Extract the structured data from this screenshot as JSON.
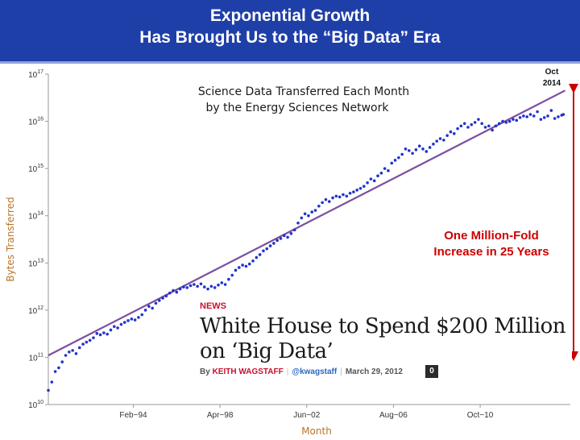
{
  "banner": {
    "title_line1": "Exponential Growth",
    "title_line2": "Has Brought Us to the “Big Data” Era",
    "background_color": "#1f3fa8"
  },
  "chart_data": {
    "type": "scatter",
    "title_line1": "Science Data Transferred Each Month",
    "title_line2": "by the Energy Sciences Network",
    "xlabel": "Month",
    "ylabel": "Bytes Transferred",
    "y_scale": "log",
    "ylim": [
      10000000000.0,
      1e+17
    ],
    "y_ticks": [
      {
        "base": "10",
        "exp": "10",
        "value": 10000000000.0
      },
      {
        "base": "10",
        "exp": "11",
        "value": 100000000000.0
      },
      {
        "base": "10",
        "exp": "12",
        "value": 1000000000000.0
      },
      {
        "base": "10",
        "exp": "13",
        "value": 10000000000000.0
      },
      {
        "base": "10",
        "exp": "14",
        "value": 100000000000000.0
      },
      {
        "base": "10",
        "exp": "15",
        "value": 1000000000000000.0
      },
      {
        "base": "10",
        "exp": "16",
        "value": 1e+16
      },
      {
        "base": "10",
        "exp": "17",
        "value": 1e+17
      }
    ],
    "x_ticks": [
      "Feb−94",
      "Apr−98",
      "Jun−02",
      "Aug−06",
      "Oct−10"
    ],
    "xlim": [
      "1990-01",
      "2015-02"
    ],
    "grid": false,
    "marker_color": "#2233cc",
    "trend_color": "#7b4fa0",
    "points": [
      [
        "1990-01",
        20000000000.0
      ],
      [
        "1990-03",
        30000000000.0
      ],
      [
        "1990-05",
        50000000000.0
      ],
      [
        "1990-07",
        60000000000.0
      ],
      [
        "1990-09",
        80000000000.0
      ],
      [
        "1990-11",
        110000000000.0
      ],
      [
        "1991-01",
        130000000000.0
      ],
      [
        "1991-03",
        140000000000.0
      ],
      [
        "1991-05",
        120000000000.0
      ],
      [
        "1991-07",
        160000000000.0
      ],
      [
        "1991-09",
        190000000000.0
      ],
      [
        "1991-11",
        210000000000.0
      ],
      [
        "1992-01",
        230000000000.0
      ],
      [
        "1992-03",
        260000000000.0
      ],
      [
        "1992-05",
        320000000000.0
      ],
      [
        "1992-07",
        300000000000.0
      ],
      [
        "1992-09",
        330000000000.0
      ],
      [
        "1992-11",
        310000000000.0
      ],
      [
        "1993-01",
        380000000000.0
      ],
      [
        "1993-03",
        450000000000.0
      ],
      [
        "1993-05",
        420000000000.0
      ],
      [
        "1993-07",
        500000000000.0
      ],
      [
        "1993-09",
        550000000000.0
      ],
      [
        "1993-11",
        600000000000.0
      ],
      [
        "1994-01",
        650000000000.0
      ],
      [
        "1994-03",
        620000000000.0
      ],
      [
        "1994-05",
        700000000000.0
      ],
      [
        "1994-07",
        800000000000.0
      ],
      [
        "1994-09",
        1000000000000.0
      ],
      [
        "1994-11",
        1200000000000.0
      ],
      [
        "1995-01",
        1100000000000.0
      ],
      [
        "1995-03",
        1400000000000.0
      ],
      [
        "1995-05",
        1600000000000.0
      ],
      [
        "1995-07",
        1800000000000.0
      ],
      [
        "1995-09",
        2000000000000.0
      ],
      [
        "1995-11",
        2300000000000.0
      ],
      [
        "1996-01",
        2600000000000.0
      ],
      [
        "1996-03",
        2400000000000.0
      ],
      [
        "1996-05",
        2800000000000.0
      ],
      [
        "1996-07",
        3100000000000.0
      ],
      [
        "1996-09",
        3000000000000.0
      ],
      [
        "1996-11",
        3300000000000.0
      ],
      [
        "1997-01",
        3500000000000.0
      ],
      [
        "1997-03",
        3200000000000.0
      ],
      [
        "1997-05",
        3600000000000.0
      ],
      [
        "1997-07",
        3100000000000.0
      ],
      [
        "1997-09",
        2800000000000.0
      ],
      [
        "1997-11",
        3200000000000.0
      ],
      [
        "1998-01",
        3000000000000.0
      ],
      [
        "1998-03",
        3400000000000.0
      ],
      [
        "1998-05",
        3800000000000.0
      ],
      [
        "1998-07",
        3500000000000.0
      ],
      [
        "1998-09",
        4500000000000.0
      ],
      [
        "1998-11",
        5500000000000.0
      ],
      [
        "1999-01",
        7000000000000.0
      ],
      [
        "1999-03",
        8000000000000.0
      ],
      [
        "1999-05",
        9000000000000.0
      ],
      [
        "1999-07",
        8500000000000.0
      ],
      [
        "1999-09",
        9500000000000.0
      ],
      [
        "1999-11",
        11000000000000.0
      ],
      [
        "2000-01",
        13000000000000.0
      ],
      [
        "2000-03",
        15000000000000.0
      ],
      [
        "2000-05",
        18000000000000.0
      ],
      [
        "2000-07",
        20000000000000.0
      ],
      [
        "2000-09",
        23000000000000.0
      ],
      [
        "2000-11",
        26000000000000.0
      ],
      [
        "2001-01",
        30000000000000.0
      ],
      [
        "2001-03",
        33000000000000.0
      ],
      [
        "2001-05",
        38000000000000.0
      ],
      [
        "2001-07",
        35000000000000.0
      ],
      [
        "2001-09",
        42000000000000.0
      ],
      [
        "2001-11",
        50000000000000.0
      ],
      [
        "2002-01",
        70000000000000.0
      ],
      [
        "2002-03",
        90000000000000.0
      ],
      [
        "2002-05",
        110000000000000.0
      ],
      [
        "2002-07",
        100000000000000.0
      ],
      [
        "2002-09",
        120000000000000.0
      ],
      [
        "2002-11",
        130000000000000.0
      ],
      [
        "2003-01",
        160000000000000.0
      ],
      [
        "2003-03",
        190000000000000.0
      ],
      [
        "2003-05",
        220000000000000.0
      ],
      [
        "2003-07",
        200000000000000.0
      ],
      [
        "2003-09",
        240000000000000.0
      ],
      [
        "2003-11",
        260000000000000.0
      ],
      [
        "2004-01",
        250000000000000.0
      ],
      [
        "2004-03",
        280000000000000.0
      ],
      [
        "2004-05",
        260000000000000.0
      ],
      [
        "2004-07",
        300000000000000.0
      ],
      [
        "2004-09",
        320000000000000.0
      ],
      [
        "2004-11",
        350000000000000.0
      ],
      [
        "2005-01",
        380000000000000.0
      ],
      [
        "2005-03",
        420000000000000.0
      ],
      [
        "2005-05",
        500000000000000.0
      ],
      [
        "2005-07",
        600000000000000.0
      ],
      [
        "2005-09",
        550000000000000.0
      ],
      [
        "2005-11",
        700000000000000.0
      ],
      [
        "2006-01",
        800000000000000.0
      ],
      [
        "2006-03",
        1000000000000000.0
      ],
      [
        "2006-05",
        900000000000000.0
      ],
      [
        "2006-07",
        1300000000000000.0
      ],
      [
        "2006-09",
        1500000000000000.0
      ],
      [
        "2006-11",
        1700000000000000.0
      ],
      [
        "2007-01",
        2000000000000000.0
      ],
      [
        "2007-03",
        2600000000000000.0
      ],
      [
        "2007-05",
        2400000000000000.0
      ],
      [
        "2007-07",
        2100000000000000.0
      ],
      [
        "2007-09",
        2500000000000000.0
      ],
      [
        "2007-11",
        3000000000000000.0
      ],
      [
        "2008-01",
        2600000000000000.0
      ],
      [
        "2008-03",
        2300000000000000.0
      ],
      [
        "2008-05",
        2800000000000000.0
      ],
      [
        "2008-07",
        3300000000000000.0
      ],
      [
        "2008-09",
        3800000000000000.0
      ],
      [
        "2008-11",
        4300000000000000.0
      ],
      [
        "2009-01",
        4000000000000000.0
      ],
      [
        "2009-03",
        5000000000000000.0
      ],
      [
        "2009-05",
        6000000000000000.0
      ],
      [
        "2009-07",
        5500000000000000.0
      ],
      [
        "2009-09",
        7000000000000000.0
      ],
      [
        "2009-11",
        8000000000000000.0
      ],
      [
        "2010-01",
        9000000000000000.0
      ],
      [
        "2010-03",
        7500000000000000.0
      ],
      [
        "2010-05",
        8500000000000000.0
      ],
      [
        "2010-07",
        9500000000000000.0
      ],
      [
        "2010-09",
        1.1e+16
      ],
      [
        "2010-11",
        9000000000000000.0
      ],
      [
        "2011-01",
        7500000000000000.0
      ],
      [
        "2011-03",
        8000000000000000.0
      ],
      [
        "2011-05",
        6500000000000000.0
      ],
      [
        "2011-07",
        8000000000000000.0
      ],
      [
        "2011-09",
        9000000000000000.0
      ],
      [
        "2011-11",
        1e+16
      ],
      [
        "2012-01",
        9500000000000000.0
      ],
      [
        "2012-03",
        1e+16
      ],
      [
        "2012-05",
        1.1e+16
      ],
      [
        "2012-07",
        1.05e+16
      ],
      [
        "2012-09",
        1.2e+16
      ],
      [
        "2012-11",
        1.3e+16
      ],
      [
        "2013-01",
        1.25e+16
      ],
      [
        "2013-03",
        1.4e+16
      ],
      [
        "2013-05",
        1.3e+16
      ],
      [
        "2013-07",
        1.6e+16
      ],
      [
        "2013-09",
        1.1e+16
      ],
      [
        "2013-11",
        1.2e+16
      ],
      [
        "2014-01",
        1.3e+16
      ],
      [
        "2014-03",
        1.7e+16
      ],
      [
        "2014-05",
        1.15e+16
      ],
      [
        "2014-07",
        1.25e+16
      ],
      [
        "2014-09",
        1.35e+16
      ],
      [
        "2014-10",
        1.4e+16
      ]
    ],
    "trend": {
      "start": [
        "1990-01",
        110000000000.0
      ],
      "end": [
        "2014-11",
        4.5e+16
      ]
    },
    "annotation_oct": {
      "line1": "Oct",
      "line2": "2014"
    },
    "annotation_increase": {
      "line1": "One Million-Fold",
      "line2": "Increase in 25 Years",
      "color": "#cc0000"
    }
  },
  "news": {
    "tag": "NEWS",
    "headline_line1": "White House to Spend $200 Million",
    "headline_line2": "on ‘Big Data’",
    "byline_by": "By",
    "byline_author": "KEITH WAGSTAFF",
    "byline_handle": "@kwagstaff",
    "byline_date": "March 29, 2012",
    "comment_count": "0"
  }
}
